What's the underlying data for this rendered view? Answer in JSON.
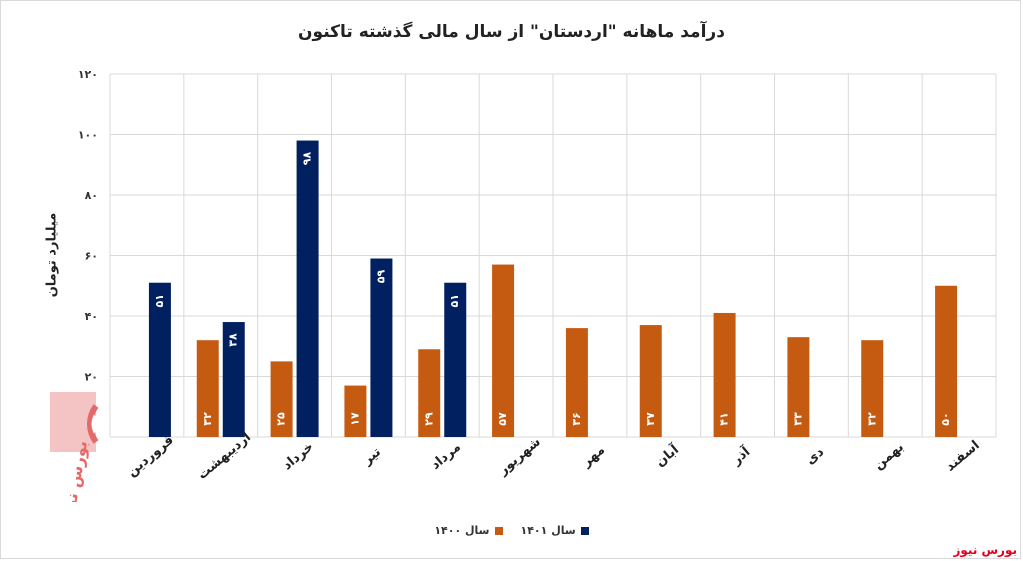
{
  "title": "درآمد ماهانه \"اردستان\" از سال مالی گذشته تاکنون",
  "source_label": "بورس نیوز",
  "logo_text": "بورس نیوز",
  "colors": {
    "s1400": "#c55a11",
    "s1401": "#002060",
    "grid": "#d9d9d9",
    "source": "#e2001a"
  },
  "chart_data": {
    "type": "bar",
    "ylabel": "میلیارد تومان",
    "ylim": [
      0,
      120
    ],
    "yticks": [
      "۰",
      "۲۰",
      "۴۰",
      "۶۰",
      "۸۰",
      "۱۰۰",
      "۱۲۰"
    ],
    "grid": true,
    "legend_position": "bottom",
    "categories": [
      "فروردین",
      "اردیبهشت",
      "خرداد",
      "تیر",
      "مرداد",
      "شهریور",
      "مهر",
      "آبان",
      "آذر",
      "دی",
      "بهمن",
      "اسفند"
    ],
    "series": [
      {
        "name": "سال ۱۴۰۰",
        "color": "#c55a11",
        "values": [
          0,
          32,
          25,
          17,
          29,
          57,
          36,
          37,
          41,
          33,
          32,
          50
        ],
        "labels": [
          "۰",
          "۳۲",
          "۲۵",
          "۱۷",
          "۲۹",
          "۵۷",
          "۳۶",
          "۳۷",
          "۴۱",
          "۳۳",
          "۳۲",
          "۵۰"
        ]
      },
      {
        "name": "سال ۱۴۰۱",
        "color": "#002060",
        "values": [
          51,
          38,
          98,
          59,
          51,
          null,
          null,
          null,
          null,
          null,
          null,
          null
        ],
        "labels": [
          "۵۱",
          "۳۸",
          "۹۸",
          "۵۹",
          "۵۱",
          "",
          "",
          "",
          "",
          "",
          "",
          ""
        ]
      }
    ]
  }
}
